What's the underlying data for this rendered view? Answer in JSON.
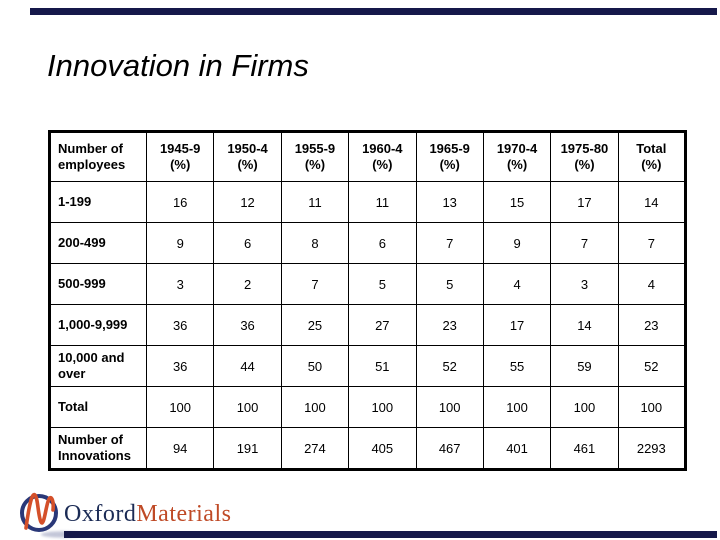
{
  "slide": {
    "title": "Innovation in Firms",
    "accent_bar_color": "#15184a"
  },
  "table": {
    "corner_label": "Number of employees",
    "unit_label": "(%)",
    "columns": [
      {
        "label": "1945-9",
        "unit": "(%)"
      },
      {
        "label": "1950-4",
        "unit": "(%)"
      },
      {
        "label": "1955-9",
        "unit": "(%)"
      },
      {
        "label": "1960-4",
        "unit": "(%)"
      },
      {
        "label": "1965-9",
        "unit": "(%)"
      },
      {
        "label": "1970-4",
        "unit": "(%)"
      },
      {
        "label": "1975-80",
        "unit": "(%)"
      },
      {
        "label": "Total",
        "unit": "(%)"
      }
    ],
    "rows": [
      {
        "label": "1-199",
        "values": [
          16,
          12,
          11,
          11,
          13,
          15,
          17,
          14
        ]
      },
      {
        "label": "200-499",
        "values": [
          9,
          6,
          8,
          6,
          7,
          9,
          7,
          7
        ]
      },
      {
        "label": "500-999",
        "values": [
          3,
          2,
          7,
          5,
          5,
          4,
          3,
          4
        ]
      },
      {
        "label": "1,000-9,999",
        "values": [
          36,
          36,
          25,
          27,
          23,
          17,
          14,
          23
        ]
      },
      {
        "label": "10,000 and over",
        "values": [
          36,
          44,
          50,
          51,
          52,
          55,
          59,
          52
        ]
      },
      {
        "label": "Total",
        "values": [
          100,
          100,
          100,
          100,
          100,
          100,
          100,
          100
        ]
      },
      {
        "label": "Number of Innovations",
        "values": [
          94,
          191,
          274,
          405,
          467,
          401,
          461,
          2293
        ]
      }
    ]
  },
  "logo": {
    "text_primary": "Oxford",
    "text_secondary": "Materials",
    "primary_color": "#1b2b55",
    "secondary_color": "#bf4a26",
    "ring_color": "#2a3878",
    "mark_color": "#d4502a"
  }
}
